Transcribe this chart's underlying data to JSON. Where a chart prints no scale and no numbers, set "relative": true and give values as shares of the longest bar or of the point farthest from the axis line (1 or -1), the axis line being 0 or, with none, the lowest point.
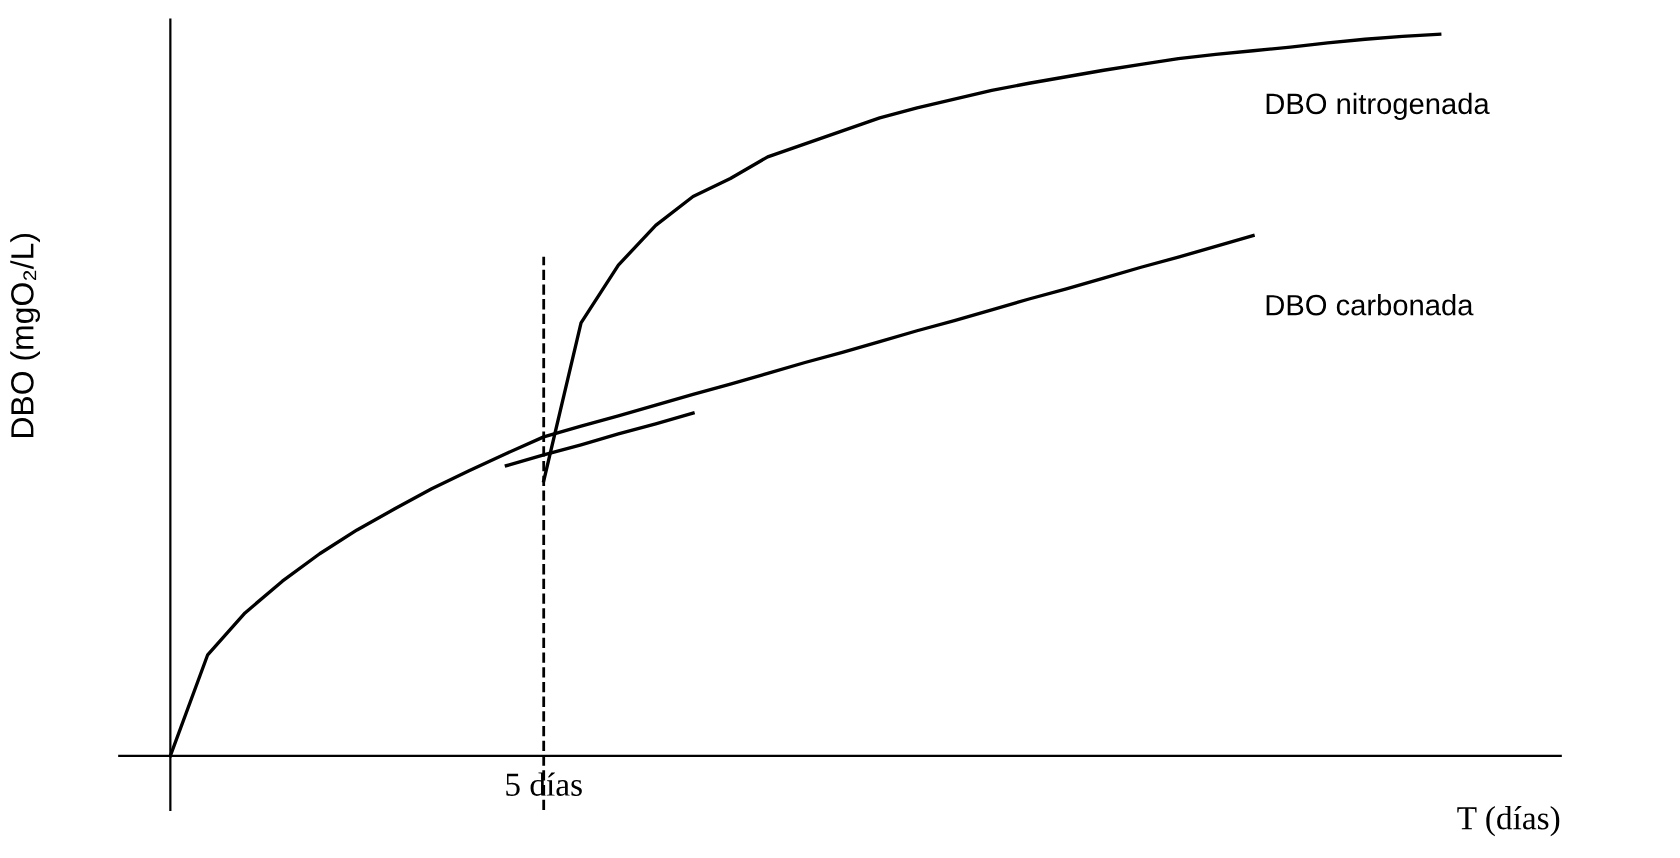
{
  "chart_data": {
    "type": "line",
    "relative": true,
    "xlabel": "T (días)",
    "ylabel": "DBO (mgO₂/L)",
    "categories": [
      null,
      null,
      null,
      null,
      null,
      null,
      null,
      null,
      null,
      null,
      null,
      null,
      null,
      null,
      null,
      null,
      null,
      null,
      null,
      null,
      null,
      null,
      null,
      null,
      null,
      null,
      null,
      null,
      null,
      null,
      null,
      null,
      null,
      null,
      null,
      null,
      null,
      null
    ],
    "series": [
      {
        "name": "DBO nitrogenada",
        "color": "#000000",
        "values": [
          null,
          null,
          null,
          null,
          null,
          null,
          null,
          null,
          null,
          null,
          0.381,
          0.6,
          0.68,
          0.735,
          0.775,
          0.8,
          0.83,
          0.848,
          0.866,
          0.884,
          0.898,
          0.91,
          0.922,
          0.932,
          0.941,
          0.95,
          0.958,
          0.966,
          0.972,
          0.977,
          0.982,
          0.988,
          0.993,
          0.997,
          1.0,
          null,
          null,
          null
        ]
      },
      {
        "name": "DBO carbonada",
        "color": "#000000",
        "values": [
          0,
          0.14,
          0.198,
          0.242,
          0.28,
          0.313,
          0.342,
          0.37,
          0.395,
          0.419,
          0.442,
          0.457,
          0.471,
          0.486,
          0.501,
          0.515,
          0.53,
          0.545,
          0.559,
          0.574,
          0.589,
          0.603,
          0.618,
          0.633,
          0.647,
          0.662,
          0.677,
          0.691,
          0.706,
          0.721,
          null,
          null,
          null,
          null,
          null,
          null,
          null,
          null
        ]
      },
      {
        "color": "#000000",
        "values": [
          null,
          null,
          null,
          null,
          null,
          null,
          null,
          null,
          null,
          0.402,
          0.417,
          0.431,
          0.446,
          0.46,
          0.475,
          null,
          null,
          null,
          null,
          null,
          null,
          null,
          null,
          null,
          null,
          null,
          null,
          null,
          null,
          null,
          null,
          null,
          null,
          null,
          null,
          null,
          null,
          null
        ]
      }
    ],
    "annotations": [
      "5 días"
    ],
    "marker": "none",
    "line_style": "solid"
  }
}
